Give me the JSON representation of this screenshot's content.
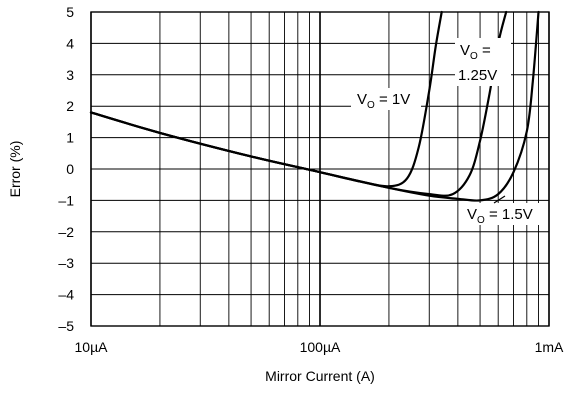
{
  "chart_data": {
    "type": "line",
    "title": "",
    "xlabel": "Mirror Current (A)",
    "ylabel": "Error (%)",
    "x_scale": "log",
    "xlim": [
      1e-05,
      0.001
    ],
    "ylim": [
      -5,
      5
    ],
    "grid": true,
    "x_ticks": [
      {
        "value": 1e-05,
        "label": "10µA"
      },
      {
        "value": 0.0001,
        "label": "100µA"
      },
      {
        "value": 0.001,
        "label": "1mA"
      }
    ],
    "y_ticks": [
      {
        "value": 5,
        "label": "5"
      },
      {
        "value": 4,
        "label": "4"
      },
      {
        "value": 3,
        "label": "3"
      },
      {
        "value": 2,
        "label": "2"
      },
      {
        "value": 1,
        "label": "1"
      },
      {
        "value": 0,
        "label": "0"
      },
      {
        "value": -1,
        "label": "–1"
      },
      {
        "value": -2,
        "label": "–2"
      },
      {
        "value": -3,
        "label": "–3"
      },
      {
        "value": -4,
        "label": "–4"
      },
      {
        "value": -5,
        "label": "–5"
      }
    ],
    "series": [
      {
        "x": [
          1e-05,
          2e-05,
          5e-05,
          0.0001,
          0.00015,
          0.0002,
          0.00024,
          0.00027,
          0.0003,
          0.00032,
          0.00034
        ],
        "y": [
          1.8,
          1.15,
          0.4,
          -0.1,
          -0.4,
          -0.55,
          -0.3,
          0.7,
          2.5,
          3.9,
          5
        ]
      },
      {
        "x": [
          1e-05,
          2e-05,
          5e-05,
          0.0001,
          0.0002,
          0.0003,
          0.00038,
          0.00045,
          0.0005,
          0.00055,
          0.0006,
          0.00065
        ],
        "y": [
          1.8,
          1.15,
          0.4,
          -0.1,
          -0.6,
          -0.8,
          -0.8,
          -0.2,
          0.9,
          2.4,
          4.0,
          5
        ]
      },
      {
        "x": [
          1e-05,
          2e-05,
          5e-05,
          0.0001,
          0.0002,
          0.0003,
          0.0004,
          0.0005,
          0.0006,
          0.0007,
          0.0008,
          0.00085,
          0.0009
        ],
        "y": [
          1.8,
          1.15,
          0.4,
          -0.1,
          -0.6,
          -0.85,
          -0.95,
          -1.0,
          -0.8,
          -0.1,
          1.2,
          2.8,
          5
        ]
      }
    ],
    "annotations": [
      {
        "id": "vo-1v",
        "base": "V",
        "sub": "O",
        "rest": " = 1V"
      },
      {
        "id": "vo-125v",
        "base": "V",
        "sub": "O",
        "rest": " =",
        "line2": "1.25V"
      },
      {
        "id": "vo-15v",
        "base": "V",
        "sub": "O",
        "rest": " = 1.5V"
      }
    ]
  }
}
